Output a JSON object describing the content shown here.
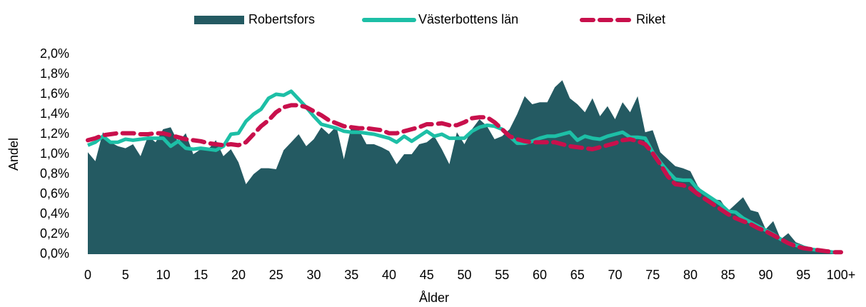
{
  "chart_data": {
    "type": "area_line",
    "x_label": "Ålder",
    "y_label": "Andel",
    "legend": "top",
    "categories": [
      "0",
      null,
      null,
      null,
      null,
      "5",
      null,
      null,
      null,
      null,
      "10",
      null,
      null,
      null,
      null,
      "15",
      null,
      null,
      null,
      null,
      "20",
      null,
      null,
      null,
      null,
      "25",
      null,
      null,
      null,
      null,
      "30",
      null,
      null,
      null,
      null,
      "35",
      null,
      null,
      null,
      null,
      "40",
      null,
      null,
      null,
      null,
      "45",
      null,
      null,
      null,
      null,
      "50",
      null,
      null,
      null,
      null,
      "55",
      null,
      null,
      null,
      null,
      "60",
      null,
      null,
      null,
      null,
      "65",
      null,
      null,
      null,
      null,
      "70",
      null,
      null,
      null,
      null,
      "75",
      null,
      null,
      null,
      null,
      "80",
      null,
      null,
      null,
      null,
      "85",
      null,
      null,
      null,
      null,
      "90",
      null,
      null,
      null,
      null,
      "95",
      null,
      null,
      null,
      null,
      "100+"
    ],
    "ylim": [
      0,
      2.0
    ],
    "yticks": [
      {
        "value": 0,
        "label": "0,0%"
      },
      {
        "value": 0.2,
        "label": "0,2%"
      },
      {
        "value": 0.4,
        "label": "0,4%"
      },
      {
        "value": 0.6,
        "label": "0,6%"
      },
      {
        "value": 0.8,
        "label": "0,8%"
      },
      {
        "value": 1.0,
        "label": "1,0%"
      },
      {
        "value": 1.2,
        "label": "1,2%"
      },
      {
        "value": 1.4,
        "label": "1,4%"
      },
      {
        "value": 1.6,
        "label": "1,6%"
      },
      {
        "value": 1.8,
        "label": "1,8%"
      },
      {
        "value": 2.0,
        "label": "2,0%"
      }
    ],
    "series": [
      {
        "name": "Robertsfors",
        "kind": "area",
        "color": "#245a62",
        "values": [
          1.02,
          0.93,
          1.22,
          1.12,
          1.08,
          1.06,
          1.1,
          0.98,
          1.18,
          1.12,
          1.25,
          1.27,
          1.12,
          1.21,
          1.0,
          1.05,
          1.05,
          1.14,
          0.98,
          1.05,
          0.92,
          0.7,
          0.8,
          0.86,
          0.86,
          0.85,
          1.04,
          1.12,
          1.2,
          1.08,
          1.15,
          1.27,
          1.2,
          1.28,
          0.95,
          1.28,
          1.24,
          1.1,
          1.1,
          1.07,
          1.03,
          0.9,
          1.0,
          1.0,
          1.1,
          1.12,
          1.18,
          1.05,
          0.9,
          1.22,
          1.1,
          1.25,
          1.35,
          1.28,
          1.15,
          1.18,
          1.25,
          1.4,
          1.58,
          1.5,
          1.52,
          1.52,
          1.67,
          1.74,
          1.56,
          1.5,
          1.42,
          1.56,
          1.38,
          1.48,
          1.35,
          1.52,
          1.42,
          1.58,
          1.22,
          1.24,
          1.02,
          0.95,
          0.88,
          0.86,
          0.83,
          0.68,
          0.6,
          0.55,
          0.54,
          0.43,
          0.5,
          0.57,
          0.44,
          0.42,
          0.25,
          0.33,
          0.15,
          0.21,
          0.12,
          0.09,
          0.05,
          0.04,
          0.03,
          0.02,
          0.02
        ]
      },
      {
        "name": "Västerbottens län",
        "kind": "line",
        "color": "#1dbfa6",
        "values": [
          1.09,
          1.12,
          1.18,
          1.12,
          1.12,
          1.15,
          1.14,
          1.15,
          1.16,
          1.16,
          1.16,
          1.08,
          1.13,
          1.06,
          1.05,
          1.06,
          1.05,
          1.04,
          1.08,
          1.2,
          1.21,
          1.33,
          1.4,
          1.45,
          1.56,
          1.6,
          1.59,
          1.63,
          1.55,
          1.47,
          1.38,
          1.3,
          1.28,
          1.26,
          1.23,
          1.22,
          1.22,
          1.21,
          1.2,
          1.18,
          1.16,
          1.12,
          1.18,
          1.13,
          1.18,
          1.23,
          1.18,
          1.2,
          1.16,
          1.16,
          1.16,
          1.23,
          1.27,
          1.29,
          1.28,
          1.25,
          1.18,
          1.11,
          1.11,
          1.13,
          1.16,
          1.18,
          1.18,
          1.2,
          1.22,
          1.14,
          1.18,
          1.16,
          1.15,
          1.18,
          1.2,
          1.22,
          1.17,
          1.17,
          1.16,
          1.02,
          0.92,
          0.83,
          0.75,
          0.74,
          0.74,
          0.65,
          0.6,
          0.55,
          0.5,
          0.43,
          0.42,
          0.36,
          0.32,
          0.28,
          0.24,
          0.2,
          0.15,
          0.11,
          0.09,
          0.07,
          0.05,
          0.04,
          0.03,
          0.02,
          0.02
        ]
      },
      {
        "name": "Riket",
        "kind": "dashed",
        "color": "#c8104c",
        "values": [
          1.14,
          1.16,
          1.19,
          1.2,
          1.21,
          1.21,
          1.21,
          1.2,
          1.2,
          1.21,
          1.21,
          1.19,
          1.17,
          1.15,
          1.14,
          1.13,
          1.11,
          1.1,
          1.09,
          1.1,
          1.09,
          1.12,
          1.2,
          1.28,
          1.34,
          1.42,
          1.47,
          1.49,
          1.49,
          1.47,
          1.43,
          1.39,
          1.34,
          1.31,
          1.28,
          1.27,
          1.26,
          1.26,
          1.25,
          1.24,
          1.21,
          1.21,
          1.23,
          1.25,
          1.27,
          1.3,
          1.3,
          1.31,
          1.29,
          1.29,
          1.32,
          1.36,
          1.37,
          1.37,
          1.32,
          1.25,
          1.18,
          1.15,
          1.13,
          1.12,
          1.12,
          1.12,
          1.12,
          1.1,
          1.08,
          1.07,
          1.06,
          1.05,
          1.07,
          1.09,
          1.11,
          1.14,
          1.15,
          1.13,
          1.1,
          1.01,
          0.9,
          0.78,
          0.7,
          0.69,
          0.66,
          0.6,
          0.55,
          0.5,
          0.45,
          0.4,
          0.36,
          0.33,
          0.3,
          0.26,
          0.23,
          0.19,
          0.15,
          0.11,
          0.08,
          0.06,
          0.05,
          0.04,
          0.03,
          0.02,
          0.02
        ]
      }
    ]
  }
}
